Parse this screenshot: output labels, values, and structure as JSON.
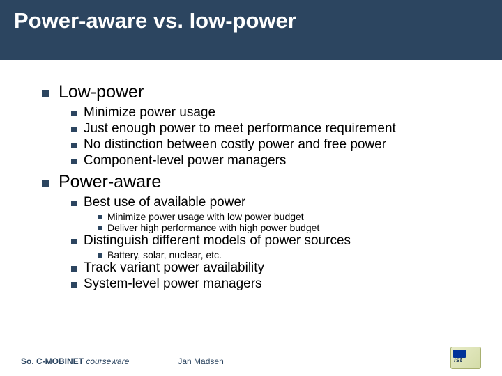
{
  "colors": {
    "title_bg": "#2c4560",
    "title_fg": "#ffffff",
    "bullet_square": "#2c4560",
    "text": "#000000",
    "footer_text": "#2c4560",
    "logo_bg_start": "#e8ecc8",
    "logo_bg_end": "#d4dca8",
    "logo_border": "#a8b070",
    "logo_flag": "#003399"
  },
  "typography": {
    "title_fontsize": 31,
    "l1_fontsize": 25,
    "l2_fontsize": 19,
    "l3_fontsize": 14,
    "footer_fontsize": 12,
    "font_family": "Arial"
  },
  "title": "Power-aware vs. low-power",
  "sections": [
    {
      "label": "Low-power",
      "items": [
        {
          "text": "Minimize power usage"
        },
        {
          "text": "Just enough power to meet performance requirement"
        },
        {
          "text": "No distinction between costly power and free power"
        },
        {
          "text": "Component-level power managers"
        }
      ]
    },
    {
      "label": "Power-aware",
      "items": [
        {
          "text": "Best use of available power",
          "sub": [
            "Minimize power usage with low power budget",
            "Deliver high performance with high power budget"
          ]
        },
        {
          "text": "Distinguish different models of power sources",
          "sub": [
            "Battery, solar, nuclear, etc."
          ]
        },
        {
          "text": "Track variant power availability"
        },
        {
          "text": "System-level power managers"
        }
      ]
    }
  ],
  "footer": {
    "brand": "So. C-MOBINET",
    "courseware": " courseware",
    "author": "Jan Madsen",
    "logo_text": "ist"
  }
}
